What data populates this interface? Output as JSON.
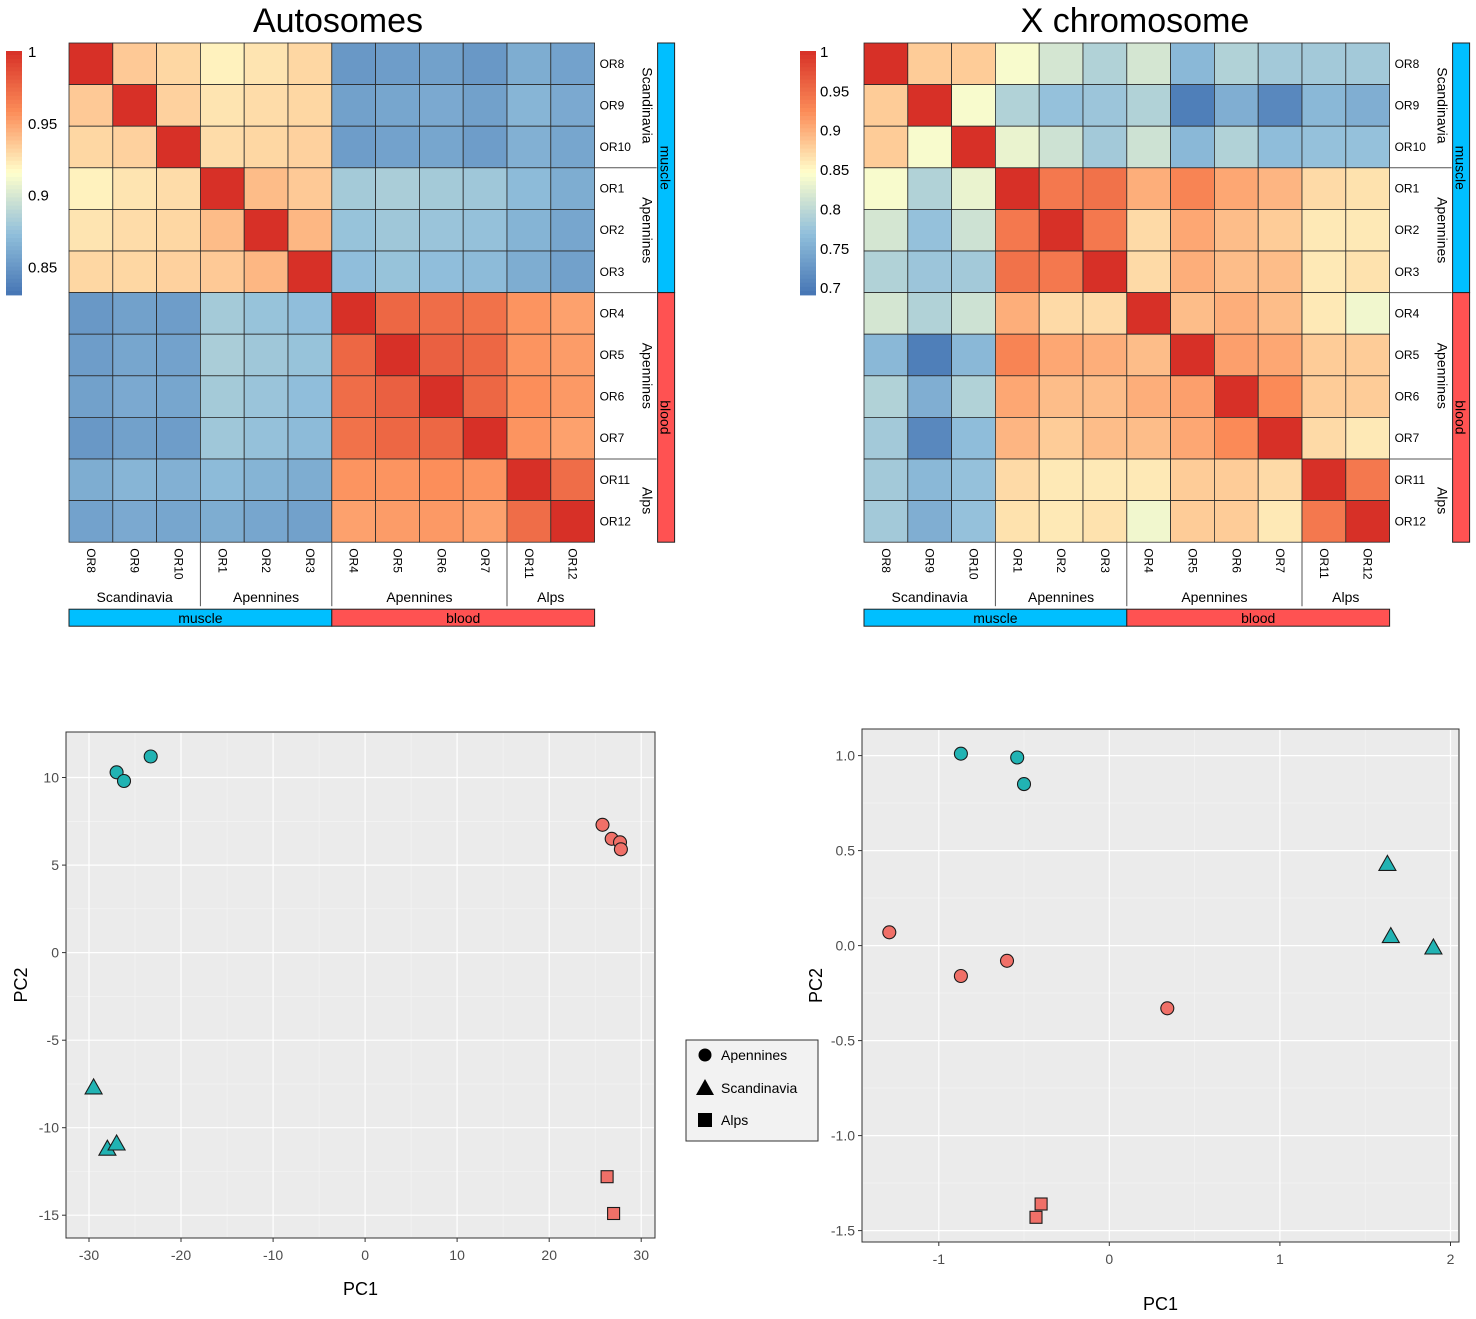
{
  "chart_data": [
    {
      "type": "heatmap",
      "title": "Autosomes",
      "samples": [
        "OR8",
        "OR9",
        "OR10",
        "OR1",
        "OR2",
        "OR3",
        "OR4",
        "OR5",
        "OR6",
        "OR7",
        "OR11",
        "OR12"
      ],
      "population_groups": [
        {
          "label": "Scandinavia",
          "count": 3
        },
        {
          "label": "Apennines",
          "count": 3
        },
        {
          "label": "Apennines",
          "count": 4
        },
        {
          "label": "Alps",
          "count": 2
        }
      ],
      "tissue_groups": [
        {
          "label": "muscle",
          "count": 6,
          "color": "#00bfff"
        },
        {
          "label": "blood",
          "count": 6,
          "color": "#ff5252"
        }
      ],
      "scale": {
        "min": 0.83,
        "max": 1.0,
        "ticks": [
          1,
          0.95,
          0.9,
          0.85
        ],
        "tick_labels": [
          "1",
          "0.95",
          "0.9",
          "0.85"
        ]
      },
      "values": [
        [
          1.0,
          0.935,
          0.93,
          0.92,
          0.925,
          0.93,
          0.85,
          0.853,
          0.855,
          0.85,
          0.862,
          0.856
        ],
        [
          0.935,
          1.0,
          0.932,
          0.925,
          0.928,
          0.93,
          0.855,
          0.858,
          0.86,
          0.855,
          0.867,
          0.86
        ],
        [
          0.93,
          0.932,
          1.0,
          0.928,
          0.93,
          0.932,
          0.853,
          0.856,
          0.858,
          0.853,
          0.864,
          0.858
        ],
        [
          0.92,
          0.925,
          0.928,
          1.0,
          0.94,
          0.935,
          0.88,
          0.882,
          0.88,
          0.878,
          0.87,
          0.862
        ],
        [
          0.925,
          0.928,
          0.93,
          0.94,
          1.0,
          0.942,
          0.875,
          0.878,
          0.876,
          0.874,
          0.866,
          0.858
        ],
        [
          0.93,
          0.93,
          0.932,
          0.935,
          0.942,
          1.0,
          0.872,
          0.875,
          0.872,
          0.87,
          0.862,
          0.855
        ],
        [
          0.85,
          0.855,
          0.853,
          0.88,
          0.875,
          0.872,
          1.0,
          0.975,
          0.972,
          0.97,
          0.955,
          0.95
        ],
        [
          0.853,
          0.858,
          0.856,
          0.882,
          0.878,
          0.875,
          0.975,
          1.0,
          0.978,
          0.975,
          0.955,
          0.952
        ],
        [
          0.855,
          0.86,
          0.858,
          0.88,
          0.876,
          0.872,
          0.972,
          0.978,
          1.0,
          0.975,
          0.957,
          0.953
        ],
        [
          0.85,
          0.855,
          0.853,
          0.878,
          0.874,
          0.87,
          0.97,
          0.975,
          0.975,
          1.0,
          0.955,
          0.95
        ],
        [
          0.862,
          0.867,
          0.864,
          0.87,
          0.866,
          0.862,
          0.955,
          0.955,
          0.957,
          0.955,
          1.0,
          0.972
        ],
        [
          0.856,
          0.86,
          0.858,
          0.862,
          0.858,
          0.855,
          0.95,
          0.952,
          0.953,
          0.95,
          0.972,
          1.0
        ]
      ]
    },
    {
      "type": "heatmap",
      "title": "X chromosome",
      "samples": [
        "OR8",
        "OR9",
        "OR10",
        "OR1",
        "OR2",
        "OR3",
        "OR4",
        "OR5",
        "OR6",
        "OR7",
        "OR11",
        "OR12"
      ],
      "population_groups": [
        {
          "label": "Scandinavia",
          "count": 3
        },
        {
          "label": "Apennines",
          "count": 3
        },
        {
          "label": "Apennines",
          "count": 4
        },
        {
          "label": "Alps",
          "count": 2
        }
      ],
      "tissue_groups": [
        {
          "label": "muscle",
          "count": 6,
          "color": "#00bfff"
        },
        {
          "label": "blood",
          "count": 6,
          "color": "#ff5252"
        }
      ],
      "scale": {
        "min": 0.69,
        "max": 1.0,
        "ticks": [
          1,
          0.95,
          0.9,
          0.85,
          0.8,
          0.75,
          0.7
        ],
        "tick_labels": [
          "1",
          "0.95",
          "0.9",
          "0.85",
          "0.8",
          "0.75",
          "0.7"
        ]
      },
      "values": [
        [
          1.0,
          0.88,
          0.88,
          0.84,
          0.815,
          0.79,
          0.815,
          0.76,
          0.79,
          0.78,
          0.78,
          0.78
        ],
        [
          0.88,
          1.0,
          0.84,
          0.79,
          0.77,
          0.775,
          0.79,
          0.7,
          0.75,
          0.71,
          0.76,
          0.75
        ],
        [
          0.88,
          0.84,
          1.0,
          0.83,
          0.81,
          0.78,
          0.81,
          0.76,
          0.79,
          0.765,
          0.77,
          0.77
        ],
        [
          0.84,
          0.79,
          0.83,
          1.0,
          0.94,
          0.945,
          0.9,
          0.93,
          0.905,
          0.895,
          0.87,
          0.865
        ],
        [
          0.815,
          0.77,
          0.81,
          0.94,
          1.0,
          0.94,
          0.87,
          0.905,
          0.89,
          0.88,
          0.86,
          0.86
        ],
        [
          0.79,
          0.775,
          0.78,
          0.945,
          0.94,
          1.0,
          0.87,
          0.9,
          0.89,
          0.89,
          0.86,
          0.865
        ],
        [
          0.815,
          0.79,
          0.81,
          0.9,
          0.87,
          0.87,
          1.0,
          0.89,
          0.9,
          0.89,
          0.86,
          0.835
        ],
        [
          0.76,
          0.7,
          0.76,
          0.93,
          0.905,
          0.9,
          0.89,
          1.0,
          0.91,
          0.905,
          0.88,
          0.88
        ],
        [
          0.79,
          0.75,
          0.79,
          0.905,
          0.89,
          0.89,
          0.9,
          0.91,
          1.0,
          0.925,
          0.88,
          0.88
        ],
        [
          0.78,
          0.71,
          0.765,
          0.895,
          0.88,
          0.89,
          0.89,
          0.905,
          0.925,
          1.0,
          0.87,
          0.86
        ],
        [
          0.78,
          0.76,
          0.77,
          0.87,
          0.86,
          0.86,
          0.86,
          0.88,
          0.88,
          0.87,
          1.0,
          0.94
        ],
        [
          0.78,
          0.75,
          0.77,
          0.865,
          0.86,
          0.865,
          0.835,
          0.88,
          0.88,
          0.86,
          0.94,
          1.0
        ]
      ]
    },
    {
      "type": "scatter",
      "title": "",
      "xlabel": "PC1",
      "ylabel": "PC2",
      "xlim": [
        -32.5,
        31.5
      ],
      "ylim": [
        -16.3,
        12.6
      ],
      "xticks": [
        -30,
        -20,
        -10,
        0,
        10,
        20,
        30
      ],
      "xtick_labels": [
        "-30",
        "-20",
        "-10",
        "0",
        "10",
        "20",
        "30"
      ],
      "yticks": [
        10,
        5,
        0,
        -5,
        -10,
        -15
      ],
      "ytick_labels": [
        "10",
        "5",
        "0",
        "-5",
        "-10",
        "-15"
      ],
      "series": [
        {
          "name": "muscle Apennines",
          "shape": "circle",
          "color": "#21b3b3",
          "points": [
            [
              -27,
              10.3
            ],
            [
              -26.2,
              9.8
            ],
            [
              -23.3,
              11.2
            ]
          ]
        },
        {
          "name": "muscle Scandinavia",
          "shape": "triangle",
          "color": "#21b3b3",
          "points": [
            [
              -29.5,
              -7.7
            ],
            [
              -28,
              -11.2
            ],
            [
              -27,
              -10.9
            ]
          ]
        },
        {
          "name": "blood Apennines",
          "shape": "circle",
          "color": "#f07068",
          "points": [
            [
              25.8,
              7.3
            ],
            [
              26.8,
              6.5
            ],
            [
              27.7,
              6.3
            ],
            [
              27.8,
              5.9
            ]
          ]
        },
        {
          "name": "blood Alps",
          "shape": "square",
          "color": "#f07068",
          "points": [
            [
              26.3,
              -12.8
            ],
            [
              27,
              -14.9
            ]
          ]
        }
      ]
    },
    {
      "type": "scatter",
      "title": "",
      "xlabel": "PC1",
      "ylabel": "PC2",
      "xlim": [
        -1.45,
        2.05
      ],
      "ylim": [
        -1.56,
        1.14
      ],
      "xticks": [
        -1,
        0,
        1,
        2
      ],
      "xtick_labels": [
        "-1",
        "0",
        "1",
        "2"
      ],
      "yticks": [
        1.0,
        0.5,
        0.0,
        -0.5,
        -1.0,
        -1.5
      ],
      "ytick_labels": [
        "1.0",
        "0.5",
        "0.0",
        "-0.5",
        "-1.0",
        "-1.5"
      ],
      "series": [
        {
          "name": "muscle Apennines",
          "shape": "circle",
          "color": "#21b3b3",
          "points": [
            [
              -0.87,
              1.01
            ],
            [
              -0.54,
              0.99
            ],
            [
              -0.5,
              0.85
            ]
          ]
        },
        {
          "name": "muscle Scandinavia",
          "shape": "triangle",
          "color": "#21b3b3",
          "points": [
            [
              1.63,
              0.43
            ],
            [
              1.65,
              0.05
            ],
            [
              1.9,
              -0.01
            ]
          ]
        },
        {
          "name": "blood Apennines",
          "shape": "circle",
          "color": "#f07068",
          "points": [
            [
              -1.29,
              0.07
            ],
            [
              -0.87,
              -0.16
            ],
            [
              -0.6,
              -0.08
            ],
            [
              0.34,
              -0.33
            ]
          ]
        },
        {
          "name": "blood Alps",
          "shape": "square",
          "color": "#f07068",
          "points": [
            [
              -0.4,
              -1.36
            ],
            [
              -0.43,
              -1.43
            ]
          ]
        }
      ]
    }
  ],
  "legend": {
    "items": [
      {
        "shape": "circle",
        "label": "Apennines"
      },
      {
        "shape": "triangle",
        "label": "Scandinavia"
      },
      {
        "shape": "square",
        "label": "Alps"
      }
    ]
  }
}
